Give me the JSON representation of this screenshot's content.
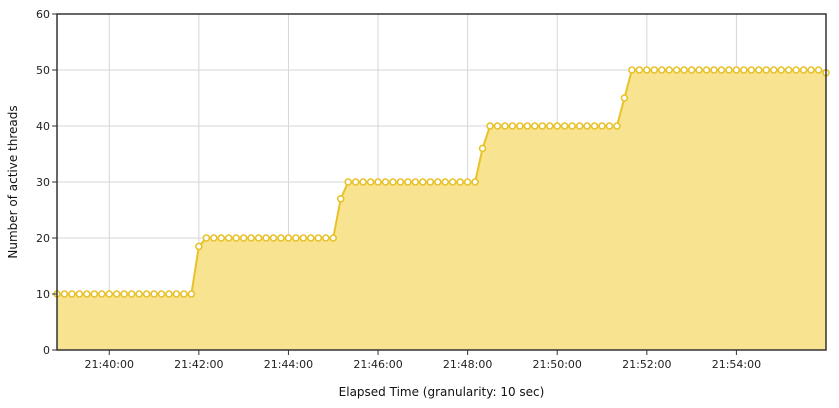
{
  "colors": {
    "line": "#e8c228",
    "fill": "#f8e391",
    "marker_fill": "#ffffff",
    "grid": "#d6d6d6",
    "frame": "#333333"
  },
  "chart_data": {
    "type": "area",
    "title": "",
    "xlabel": "Elapsed Time (granularity: 10 sec)",
    "ylabel": "Number of active threads",
    "x_unit": "seconds since 21:38:50 at 10 s granularity",
    "xlim": [
      "21:38:50",
      "21:56:00"
    ],
    "ylim": [
      0,
      60
    ],
    "y_ticks": [
      0,
      10,
      20,
      30,
      40,
      50,
      60
    ],
    "x_ticks": [
      "21:40:00",
      "21:42:00",
      "21:44:00",
      "21:46:00",
      "21:48:00",
      "21:50:00",
      "21:52:00",
      "21:54:00"
    ],
    "grid": true,
    "legend": "none",
    "series": [
      {
        "x_start": "21:38:50",
        "x_step_seconds": 10,
        "values": [
          10,
          10,
          10,
          10,
          10,
          10,
          10,
          10,
          10,
          10,
          10,
          10,
          10,
          10,
          10,
          10,
          10,
          10,
          10,
          18.5,
          20,
          20,
          20,
          20,
          20,
          20,
          20,
          20,
          20,
          20,
          20,
          20,
          20,
          20,
          20,
          20,
          20,
          20,
          27,
          30,
          30,
          30,
          30,
          30,
          30,
          30,
          30,
          30,
          30,
          30,
          30,
          30,
          30,
          30,
          30,
          30,
          30,
          36,
          40,
          40,
          40,
          40,
          40,
          40,
          40,
          40,
          40,
          40,
          40,
          40,
          40,
          40,
          40,
          40,
          40,
          40,
          45,
          50,
          50,
          50,
          50,
          50,
          50,
          50,
          50,
          50,
          50,
          50,
          50,
          50,
          50,
          50,
          50,
          50,
          50,
          50,
          50,
          50,
          50,
          50,
          50,
          50,
          50,
          49.5
        ]
      }
    ]
  }
}
